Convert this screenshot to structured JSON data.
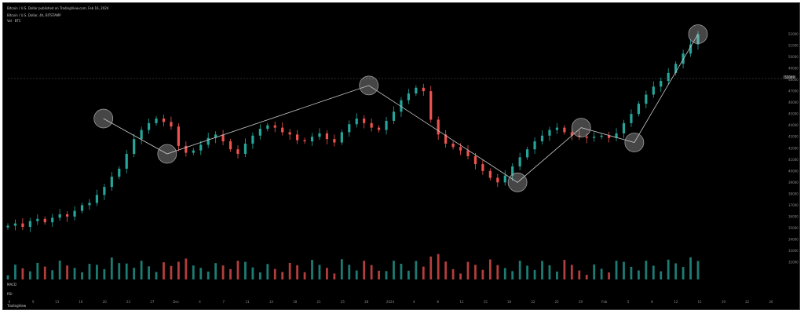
{
  "header": {
    "attribution": "Bitcoin / U.S. Dollar published on TradingView.com, Feb 16, 2024",
    "symbol_line": "Bitcoin / U.S. Dollar, 4h, BITSTAMP",
    "vol_line": "Vol · BTC"
  },
  "volume_legend": {
    "line1": "MACD",
    "line2": "RSI"
  },
  "footer": {
    "logo": "TradingView"
  },
  "colors": {
    "background": "#000000",
    "up": "#26a69a",
    "down": "#ef5350",
    "trendline": "#c8c8c8",
    "circle": "#9e9e9e",
    "dashed": "#606060"
  },
  "chart_data": {
    "type": "candlestick",
    "x_ticks": [
      "6",
      "9",
      "13",
      "16",
      "20",
      "23",
      "27",
      "Dec",
      "4",
      "7",
      "11",
      "14",
      "18",
      "21",
      "25",
      "28",
      "2024",
      "4",
      "8",
      "11",
      "15",
      "18",
      "22",
      "25",
      "29",
      "Feb",
      "5",
      "8",
      "12",
      "15",
      "19",
      "22",
      "26"
    ],
    "y_ticks": [
      "52000",
      "51000",
      "50000",
      "49000",
      "48000",
      "47000",
      "46000",
      "45000",
      "44000",
      "43000",
      "42000",
      "41000",
      "40000",
      "39000",
      "38000",
      "37000",
      "36000",
      "35000",
      "34000",
      "33000",
      "32000"
    ],
    "current_price": "52049",
    "swing_points": [
      {
        "label": "high",
        "x_index": 9,
        "price": 44600
      },
      {
        "label": "low",
        "x_index": 15,
        "price": 41500
      },
      {
        "label": "high",
        "x_index": 34,
        "price": 47500
      },
      {
        "label": "low",
        "x_index": 48,
        "price": 39000
      },
      {
        "label": "high",
        "x_index": 54,
        "price": 43800
      },
      {
        "label": "low",
        "x_index": 59,
        "price": 42500
      },
      {
        "label": "high",
        "x_index": 65,
        "price": 52000
      }
    ],
    "closes": [
      35200,
      35400,
      35100,
      35600,
      35800,
      35500,
      35900,
      36200,
      36000,
      36500,
      37000,
      37200,
      37900,
      38600,
      39500,
      40200,
      41500,
      42800,
      43600,
      44200,
      44600,
      44300,
      43900,
      42200,
      41600,
      41800,
      42300,
      42900,
      43200,
      42600,
      41900,
      41500,
      42400,
      43100,
      43700,
      44000,
      43800,
      43400,
      43200,
      42700,
      42600,
      43000,
      43300,
      42800,
      42500,
      43400,
      44100,
      44600,
      44200,
      43800,
      43600,
      44400,
      45200,
      46200,
      46800,
      47300,
      47000,
      44500,
      43200,
      42400,
      42100,
      41800,
      41300,
      40600,
      40000,
      39400,
      39000,
      39600,
      40400,
      41200,
      41900,
      42600,
      43100,
      43600,
      43800,
      43400,
      43100,
      43000,
      42900,
      43000,
      43100,
      42900,
      43300,
      44200,
      45000,
      45900,
      46700,
      47400,
      47900,
      48600,
      49400,
      50300,
      51100,
      52000
    ]
  }
}
